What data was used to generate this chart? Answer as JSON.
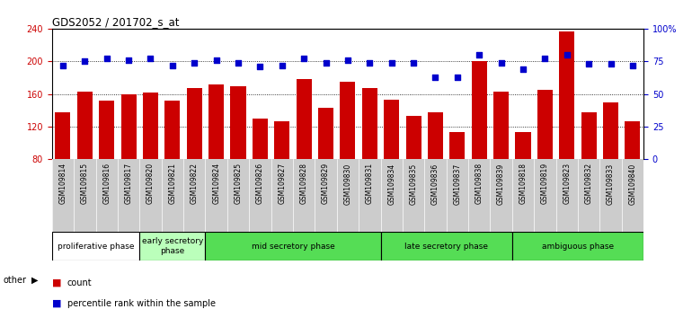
{
  "title": "GDS2052 / 201702_s_at",
  "samples": [
    "GSM109814",
    "GSM109815",
    "GSM109816",
    "GSM109817",
    "GSM109820",
    "GSM109821",
    "GSM109822",
    "GSM109824",
    "GSM109825",
    "GSM109826",
    "GSM109827",
    "GSM109828",
    "GSM109829",
    "GSM109830",
    "GSM109831",
    "GSM109834",
    "GSM109835",
    "GSM109836",
    "GSM109837",
    "GSM109838",
    "GSM109839",
    "GSM109818",
    "GSM109819",
    "GSM109823",
    "GSM109832",
    "GSM109833",
    "GSM109840"
  ],
  "counts": [
    138,
    163,
    152,
    160,
    162,
    152,
    167,
    172,
    169,
    130,
    127,
    178,
    143,
    175,
    167,
    153,
    133,
    137,
    113,
    200,
    163,
    113,
    165,
    237,
    137,
    150,
    126
  ],
  "percentiles": [
    72,
    75,
    77,
    76,
    77,
    72,
    74,
    76,
    74,
    71,
    72,
    77,
    74,
    76,
    74,
    74,
    74,
    63,
    63,
    80,
    74,
    69,
    77,
    80,
    73,
    73,
    72
  ],
  "bar_color": "#cc0000",
  "dot_color": "#0000cc",
  "ylim_left": [
    80,
    240
  ],
  "ylim_right": [
    0,
    100
  ],
  "yticks_left": [
    80,
    120,
    160,
    200,
    240
  ],
  "yticks_right": [
    0,
    25,
    50,
    75,
    100
  ],
  "yticklabels_right": [
    "0",
    "25",
    "50",
    "75",
    "100%"
  ],
  "tick_area_color": "#cccccc",
  "plot_bg_color": "#ffffff",
  "phases": [
    {
      "label": "proliferative phase",
      "start": 0,
      "end": 4,
      "color": "#ffffff"
    },
    {
      "label": "early secretory\nphase",
      "start": 4,
      "end": 7,
      "color": "#bbffbb"
    },
    {
      "label": "mid secretory phase",
      "start": 7,
      "end": 15,
      "color": "#55dd55"
    },
    {
      "label": "late secretory phase",
      "start": 15,
      "end": 21,
      "color": "#55dd55"
    },
    {
      "label": "ambiguous phase",
      "start": 21,
      "end": 27,
      "color": "#55dd55"
    }
  ],
  "other_label": "other",
  "legend_count": "count",
  "legend_pct": "percentile rank within the sample"
}
